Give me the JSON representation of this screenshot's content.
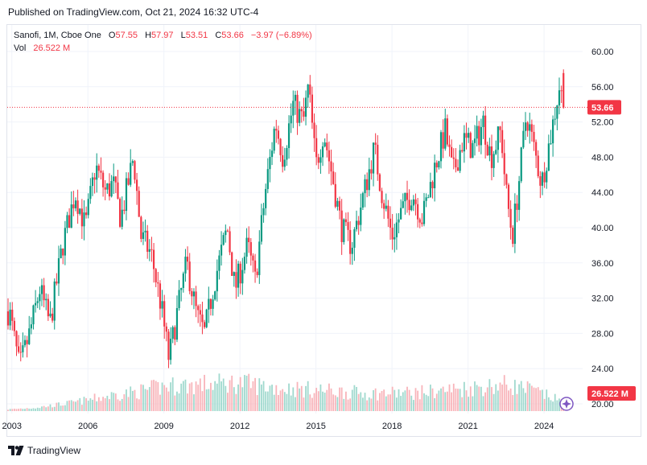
{
  "header": {
    "published": "Published on TradingView.com, Oct 21, 2024 16:32 UTC-4"
  },
  "legend": {
    "symbol": "Sanofi, 1M, Cboe One",
    "o_label": "O",
    "o_value": "57.55",
    "h_label": "H",
    "h_value": "57.97",
    "l_label": "L",
    "l_value": "53.51",
    "c_label": "C",
    "c_value": "53.66",
    "change": "−3.97 (−6.89%)",
    "vol_label": "Vol",
    "vol_value": "26.522 M"
  },
  "footer": {
    "brand": "TradingView"
  },
  "colors": {
    "up": "#089981",
    "down": "#f23645",
    "grid": "#f0f3fa",
    "price_line": "#f23645",
    "badge_text": "#ffffff"
  },
  "chart_data": {
    "type": "candlestick",
    "title": "Sanofi, 1M, Cboe One",
    "interval": "1M",
    "y_ticks": [
      "60.00",
      "56.00",
      "52.00",
      "48.00",
      "44.00",
      "40.00",
      "36.00",
      "32.00",
      "28.00",
      "24.00",
      "20.00"
    ],
    "ylim": [
      19.3,
      61.5
    ],
    "x_ticks": [
      "2003",
      "2006",
      "2009",
      "2012",
      "2015",
      "2018",
      "2021",
      "2024"
    ],
    "x_tick_years": [
      2003,
      2006,
      2009,
      2012,
      2015,
      2018,
      2021,
      2024
    ],
    "last_price": {
      "value": 53.66,
      "label": "53.66"
    },
    "volume_label": {
      "value": 20.3,
      "label": "26.522 M"
    },
    "price_path": [
      [
        2002.9,
        30.5
      ],
      [
        2003.3,
        24
      ],
      [
        2003.7,
        28
      ],
      [
        2004.1,
        33
      ],
      [
        2004.5,
        29
      ],
      [
        2005.0,
        38
      ],
      [
        2005.5,
        44
      ],
      [
        2005.9,
        40
      ],
      [
        2006.3,
        47
      ],
      [
        2006.7,
        44
      ],
      [
        2007.0,
        45
      ],
      [
        2007.3,
        41
      ],
      [
        2007.8,
        48
      ],
      [
        2008.1,
        39
      ],
      [
        2008.5,
        37
      ],
      [
        2008.9,
        31
      ],
      [
        2009.2,
        25
      ],
      [
        2009.5,
        30
      ],
      [
        2009.9,
        36
      ],
      [
        2010.3,
        30
      ],
      [
        2010.6,
        28
      ],
      [
        2011.0,
        34
      ],
      [
        2011.5,
        40
      ],
      [
        2011.8,
        33
      ],
      [
        2012.3,
        38
      ],
      [
        2012.6,
        34
      ],
      [
        2013.0,
        44
      ],
      [
        2013.4,
        52
      ],
      [
        2013.7,
        48
      ],
      [
        2014.1,
        54
      ],
      [
        2014.5,
        52
      ],
      [
        2014.7,
        56
      ],
      [
        2015.0,
        47
      ],
      [
        2015.3,
        51
      ],
      [
        2015.7,
        45
      ],
      [
        2016.0,
        40
      ],
      [
        2016.4,
        38
      ],
      [
        2016.9,
        44
      ],
      [
        2017.3,
        49
      ],
      [
        2017.6,
        44
      ],
      [
        2018.0,
        39
      ],
      [
        2018.4,
        42
      ],
      [
        2018.8,
        44
      ],
      [
        2019.2,
        41
      ],
      [
        2019.7,
        47
      ],
      [
        2020.1,
        51
      ],
      [
        2020.4,
        46
      ],
      [
        2020.8,
        50
      ],
      [
        2021.2,
        49
      ],
      [
        2021.6,
        52
      ],
      [
        2021.9,
        48
      ],
      [
        2022.3,
        51
      ],
      [
        2022.5,
        44
      ],
      [
        2022.75,
        39
      ],
      [
        2023.0,
        45
      ],
      [
        2023.3,
        53
      ],
      [
        2023.6,
        49
      ],
      [
        2023.9,
        45
      ],
      [
        2024.3,
        51
      ],
      [
        2024.6,
        56
      ],
      [
        2024.8,
        53.66
      ]
    ],
    "volume_path": [
      [
        2002.9,
        0.5
      ],
      [
        2004.0,
        1.0
      ],
      [
        2005.5,
        2.5
      ],
      [
        2007.0,
        4.5
      ],
      [
        2008.0,
        5.5
      ],
      [
        2009.0,
        7.0
      ],
      [
        2010.5,
        7.5
      ],
      [
        2012.0,
        8.0
      ],
      [
        2013.5,
        6.5
      ],
      [
        2015.0,
        6.0
      ],
      [
        2017.0,
        5.0
      ],
      [
        2019.0,
        5.2
      ],
      [
        2021.0,
        6.5
      ],
      [
        2022.5,
        7.5
      ],
      [
        2023.5,
        6.0
      ],
      [
        2024.8,
        2.5
      ]
    ]
  }
}
